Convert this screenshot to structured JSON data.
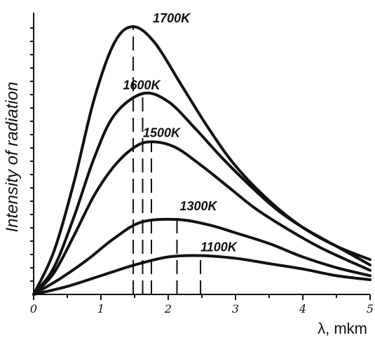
{
  "chart_data": {
    "type": "line",
    "title": "",
    "xlabel": "λ, mkm",
    "ylabel": "Intensity of radiation",
    "xlim": [
      0,
      5
    ],
    "ylim": [
      0,
      10
    ],
    "x_tick_labels": [
      "0",
      "1",
      "2",
      "3",
      "4",
      "5"
    ],
    "grid": false,
    "series": [
      {
        "name": "1700K",
        "peak_x": 1.48,
        "x": [
          0,
          0.3,
          0.6,
          0.9,
          1.2,
          1.48,
          1.8,
          2.2,
          2.6,
          3.0,
          3.5,
          4.0,
          4.5,
          5.0
        ],
        "y": [
          0,
          1.6,
          4.2,
          7.3,
          9.4,
          10.0,
          9.4,
          7.8,
          6.2,
          4.8,
          3.5,
          2.5,
          1.8,
          1.3
        ]
      },
      {
        "name": "1600K",
        "peak_x": 1.62,
        "x": [
          0,
          0.3,
          0.6,
          0.9,
          1.2,
          1.62,
          2.0,
          2.4,
          2.8,
          3.2,
          3.6,
          4.0,
          4.5,
          5.0
        ],
        "y": [
          0,
          1.0,
          2.9,
          5.1,
          6.7,
          7.5,
          7.2,
          6.2,
          5.1,
          4.1,
          3.2,
          2.5,
          1.8,
          1.1
        ]
      },
      {
        "name": "1500K",
        "peak_x": 1.75,
        "x": [
          0,
          0.3,
          0.6,
          0.9,
          1.2,
          1.5,
          1.75,
          2.1,
          2.5,
          2.9,
          3.3,
          3.8,
          4.3,
          5.0
        ],
        "y": [
          0,
          0.8,
          2.2,
          3.7,
          4.8,
          5.5,
          5.7,
          5.5,
          4.8,
          4.0,
          3.2,
          2.4,
          1.7,
          0.9
        ]
      },
      {
        "name": "1300K",
        "peak_x": 2.13,
        "x": [
          0,
          0.4,
          0.8,
          1.2,
          1.6,
          2.13,
          2.6,
          3.0,
          3.5,
          4.0,
          4.5,
          5.0
        ],
        "y": [
          0,
          0.6,
          1.3,
          2.1,
          2.7,
          2.8,
          2.6,
          2.3,
          1.9,
          1.4,
          1.0,
          0.7
        ]
      },
      {
        "name": "1100K",
        "peak_x": 2.48,
        "x": [
          0,
          0.5,
          1.0,
          1.5,
          2.0,
          2.48,
          3.0,
          3.5,
          4.0,
          4.5,
          5.0
        ],
        "y": [
          0,
          0.3,
          0.7,
          1.1,
          1.4,
          1.45,
          1.35,
          1.15,
          0.95,
          0.7,
          0.55
        ]
      }
    ]
  }
}
